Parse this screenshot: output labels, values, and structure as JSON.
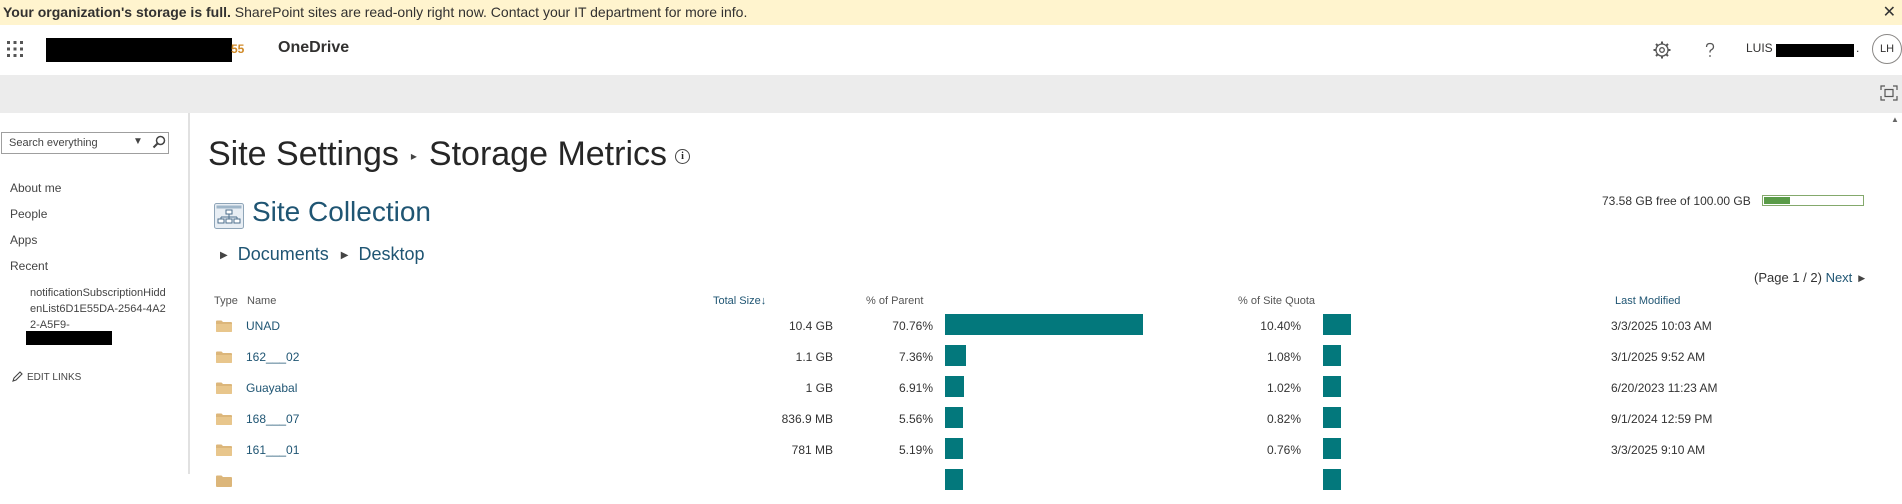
{
  "banner": {
    "bold_text": "Your organization's storage is full.",
    "text": " SharePoint sites are read-only right now. Contact your IT department for more info.",
    "close": "✕"
  },
  "suitebar": {
    "logo_tail": "55",
    "app_name": "OneDrive",
    "user_name": "LUIS",
    "user_trailing": ".",
    "avatar_initials": "LH"
  },
  "leftnav": {
    "search_placeholder": "Search everything",
    "links": [
      "About me",
      "People",
      "Apps",
      "Recent"
    ],
    "recent_item": "notificationSubscriptionHiddenList6D1E55DA-2564-4A22-A5F9-",
    "edit_links": "EDIT LINKS"
  },
  "main": {
    "title_part1": "Site Settings",
    "title_sep": "▸",
    "title_part2": "Storage Metrics",
    "info_glyph": "i",
    "site_collection": "Site Collection",
    "breadcrumb": [
      "Documents",
      "Desktop"
    ],
    "quota_text": "73.58 GB free of 100.00 GB",
    "quota_used_fraction": 0.2642,
    "pager_text": "(Page 1 / 2)",
    "pager_next": "Next"
  },
  "table": {
    "headers": {
      "type": "Type",
      "name": "Name",
      "total_size": "Total Size",
      "pct_parent": "% of Parent",
      "pct_quota": "% of Site Quota",
      "last_modified": "Last Modified"
    },
    "rows": [
      {
        "name": "UNAD",
        "size": "10.4 GB",
        "pct_parent": "70.76%",
        "parent_fraction": 0.7076,
        "pct_quota": "10.40%",
        "quota_fraction": 0.104,
        "modified": "3/3/2025 10:03 AM"
      },
      {
        "name": "162___02",
        "size": "1.1 GB",
        "pct_parent": "7.36%",
        "parent_fraction": 0.0736,
        "pct_quota": "1.08%",
        "quota_fraction": 0.0108,
        "modified": "3/1/2025 9:52 AM"
      },
      {
        "name": "Guayabal",
        "size": "1 GB",
        "pct_parent": "6.91%",
        "parent_fraction": 0.0691,
        "pct_quota": "1.02%",
        "quota_fraction": 0.0102,
        "modified": "6/20/2023 11:23 AM"
      },
      {
        "name": "168___07",
        "size": "836.9 MB",
        "pct_parent": "5.56%",
        "parent_fraction": 0.0556,
        "pct_quota": "0.82%",
        "quota_fraction": 0.0082,
        "modified": "9/1/2024 12:59 PM"
      },
      {
        "name": "161___01",
        "size": "781 MB",
        "pct_parent": "5.19%",
        "parent_fraction": 0.0519,
        "pct_quota": "0.76%",
        "quota_fraction": 0.0076,
        "modified": "3/3/2025 9:10 AM"
      }
    ]
  },
  "colors": {
    "banner_bg": "#fff4ce",
    "bar": "#03787c",
    "link": "#1f5573",
    "quota_fill": "#5a9b48"
  }
}
